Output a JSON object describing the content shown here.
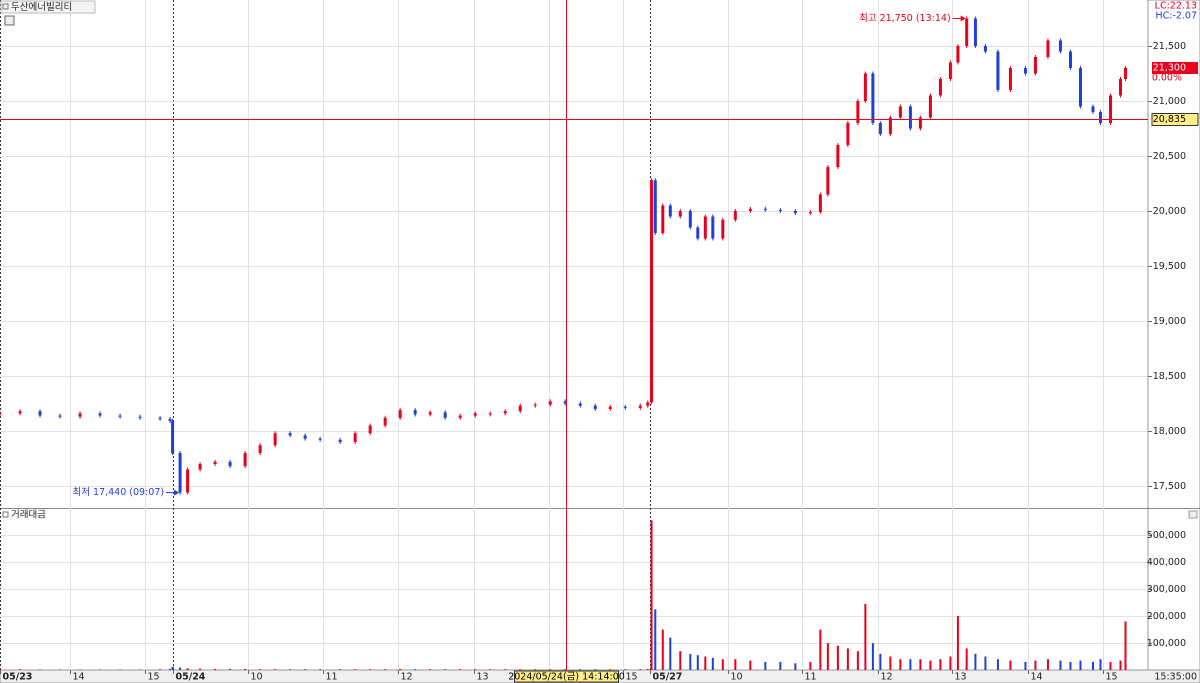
{
  "chart_data": [
    {
      "type": "candlestick",
      "title": "두산에너빌리티",
      "indicators": [
        "LC:22.13",
        "HC:-2.07"
      ],
      "up_color": "#e8001c",
      "down_color": "#1f3fd6",
      "xlim": [
        0,
        918
      ],
      "xticks": [
        {
          "value": 0,
          "label": "05/23"
        },
        {
          "value": 56,
          "label": "14"
        },
        {
          "value": 116,
          "label": "15"
        },
        {
          "value": 138,
          "label": "05/24"
        },
        {
          "value": 198,
          "label": "10"
        },
        {
          "value": 258,
          "label": "11"
        },
        {
          "value": 318,
          "label": "12"
        },
        {
          "value": 379,
          "label": "13"
        },
        {
          "value": 439,
          "label": "14"
        },
        {
          "value": 498,
          "label": "15"
        },
        {
          "value": 520,
          "label": "05/27"
        },
        {
          "value": 582,
          "label": "10"
        },
        {
          "value": 641,
          "label": "11"
        },
        {
          "value": 702,
          "label": "12"
        },
        {
          "value": 761,
          "label": "13"
        },
        {
          "value": 822,
          "label": "14"
        },
        {
          "value": 882,
          "label": "15"
        }
      ],
      "x_end_label": "15:35:00",
      "ylim": [
        17300,
        21900
      ],
      "yticks": [
        {
          "value": 17500,
          "label": "17,500"
        },
        {
          "value": 18000,
          "label": "18,000"
        },
        {
          "value": 18500,
          "label": "18,500"
        },
        {
          "value": 19000,
          "label": "19,000"
        },
        {
          "value": 19500,
          "label": "19,500"
        },
        {
          "value": 20000,
          "label": "20,000"
        },
        {
          "value": 20500,
          "label": "20,500"
        },
        {
          "value": 21000,
          "label": "21,000"
        },
        {
          "value": 21500,
          "label": "21,500"
        }
      ],
      "grid": true,
      "x": [
        0,
        16,
        32,
        48,
        64,
        80,
        96,
        112,
        128,
        136,
        138,
        144,
        150,
        160,
        172,
        184,
        196,
        208,
        220,
        232,
        244,
        256,
        272,
        284,
        296,
        308,
        320,
        332,
        344,
        356,
        368,
        380,
        392,
        404,
        416,
        428,
        440,
        452,
        464,
        476,
        488,
        500,
        512,
        518,
        521,
        524,
        530,
        536,
        544,
        552,
        558,
        564,
        570,
        578,
        588,
        600,
        612,
        624,
        636,
        648,
        656,
        662,
        670,
        678,
        686,
        692,
        698,
        704,
        712,
        720,
        728,
        736,
        744,
        752,
        760,
        766,
        773,
        780,
        788,
        798,
        808,
        820,
        828,
        838,
        848,
        856,
        864,
        874,
        880,
        888,
        896,
        900
      ],
      "values": [
        18160,
        18180,
        18140,
        18130,
        18160,
        18140,
        18130,
        18120,
        18110,
        18090,
        17800,
        17440,
        17650,
        17700,
        17720,
        17680,
        17800,
        17870,
        17980,
        17960,
        17930,
        17920,
        17900,
        17980,
        18050,
        18120,
        18190,
        18150,
        18170,
        18120,
        18140,
        18160,
        18160,
        18180,
        18230,
        18240,
        18270,
        18250,
        18230,
        18200,
        18220,
        18210,
        18230,
        18260,
        20280,
        19800,
        20050,
        19950,
        20000,
        19850,
        19750,
        19950,
        19750,
        19920,
        20000,
        20020,
        20010,
        20000,
        19980,
        19990,
        20150,
        20400,
        20600,
        20800,
        21000,
        21250,
        20800,
        20700,
        20850,
        20950,
        20750,
        20850,
        21050,
        21200,
        21350,
        21500,
        21750,
        21500,
        21450,
        21100,
        21300,
        21250,
        21400,
        21550,
        21450,
        21300,
        20950,
        20900,
        20800,
        21050,
        21200,
        21300
      ],
      "annotations": [
        {
          "label": "최고 21,750 (13:14)",
          "x": 773,
          "value": 21750,
          "color": "#e8001c"
        },
        {
          "label": "최저 17,440 (09:07)",
          "x": 144,
          "value": 17440,
          "color": "#1f3fd6"
        }
      ],
      "current": {
        "value": 21300,
        "label": "21,300",
        "change": "0.00%"
      },
      "crosshair": {
        "x": 453,
        "value": 20835,
        "label": "20,835",
        "x_label": "2024/05/24(금) 14:14:00"
      }
    },
    {
      "type": "bar",
      "title": "거래대금",
      "xlim": [
        0,
        918
      ],
      "ylim": [
        0,
        560000
      ],
      "yticks": [
        {
          "value": 100000,
          "label": "100,000"
        },
        {
          "value": 200000,
          "label": "200,000"
        },
        {
          "value": 300000,
          "label": "300,000"
        },
        {
          "value": 400000,
          "label": "400,000"
        },
        {
          "value": 500000,
          "label": "500,000"
        }
      ],
      "x": [
        0,
        16,
        32,
        48,
        64,
        80,
        96,
        112,
        128,
        136,
        138,
        144,
        150,
        160,
        172,
        184,
        196,
        208,
        220,
        232,
        244,
        256,
        272,
        284,
        296,
        308,
        320,
        332,
        344,
        356,
        368,
        380,
        392,
        404,
        416,
        428,
        440,
        452,
        464,
        476,
        488,
        500,
        512,
        518,
        521,
        524,
        530,
        536,
        544,
        552,
        558,
        564,
        570,
        578,
        588,
        600,
        612,
        624,
        636,
        648,
        656,
        662,
        670,
        678,
        686,
        692,
        698,
        704,
        712,
        720,
        728,
        736,
        744,
        752,
        760,
        766,
        773,
        780,
        788,
        798,
        808,
        820,
        828,
        838,
        848,
        856,
        864,
        874,
        880,
        888,
        896,
        900
      ],
      "values": [
        3000,
        3000,
        2000,
        2000,
        2000,
        2000,
        2000,
        2000,
        3000,
        4000,
        12000,
        9000,
        6000,
        5000,
        4000,
        4000,
        4000,
        3000,
        3000,
        3000,
        3000,
        3000,
        3000,
        3000,
        3000,
        3000,
        4000,
        3000,
        3000,
        3000,
        3000,
        3000,
        3000,
        3000,
        3000,
        3000,
        3000,
        3000,
        3000,
        3000,
        3000,
        3000,
        3000,
        4000,
        555000,
        225000,
        150000,
        120000,
        70000,
        60000,
        55000,
        50000,
        45000,
        40000,
        40000,
        35000,
        30000,
        30000,
        25000,
        30000,
        150000,
        100000,
        90000,
        80000,
        70000,
        245000,
        100000,
        60000,
        50000,
        40000,
        40000,
        40000,
        35000,
        40000,
        50000,
        200000,
        80000,
        60000,
        50000,
        40000,
        35000,
        30000,
        35000,
        40000,
        35000,
        30000,
        35000,
        30000,
        40000,
        30000,
        35000,
        180000
      ]
    }
  ]
}
